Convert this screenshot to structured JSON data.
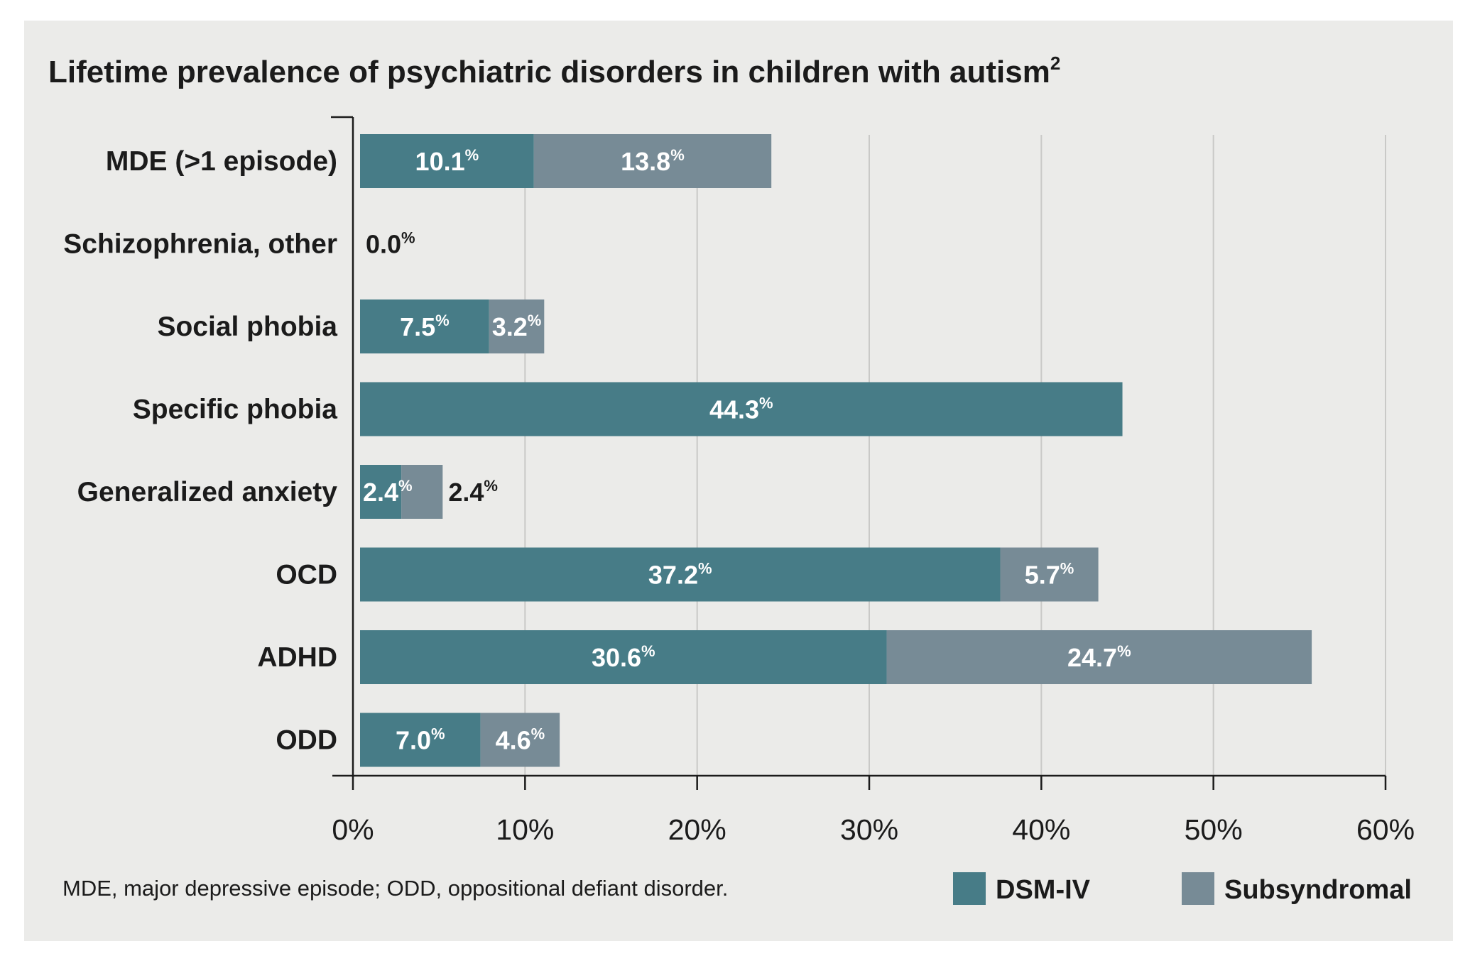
{
  "chart_data": {
    "type": "bar",
    "orientation": "horizontal",
    "stacked": true,
    "title": "Lifetime prevalence of psychiatric disorders in children with autism",
    "title_superscript": "2",
    "categories": [
      "MDE (>1 episode)",
      "Schizophrenia, other",
      "Social phobia",
      "Specific phobia",
      "Generalized anxiety",
      "OCD",
      "ADHD",
      "ODD"
    ],
    "series": [
      {
        "name": "DSM-IV",
        "color": "#477c87",
        "values": [
          10.1,
          0.0,
          7.5,
          44.3,
          2.4,
          37.2,
          30.6,
          7.0
        ]
      },
      {
        "name": "Subsyndromal",
        "color": "#778b96",
        "values": [
          13.8,
          null,
          3.2,
          null,
          2.4,
          5.7,
          24.7,
          4.6
        ]
      }
    ],
    "xlim": [
      0,
      60
    ],
    "xticks": [
      0,
      10,
      20,
      30,
      40,
      50,
      60
    ],
    "xtick_labels": [
      "0%",
      "10%",
      "20%",
      "30%",
      "40%",
      "50%",
      "60%"
    ],
    "value_suffix": "%",
    "grid": "vertical",
    "legend_position": "bottom-right",
    "footnote": "MDE, major depressive episode; ODD, oppositional defiant disorder."
  }
}
